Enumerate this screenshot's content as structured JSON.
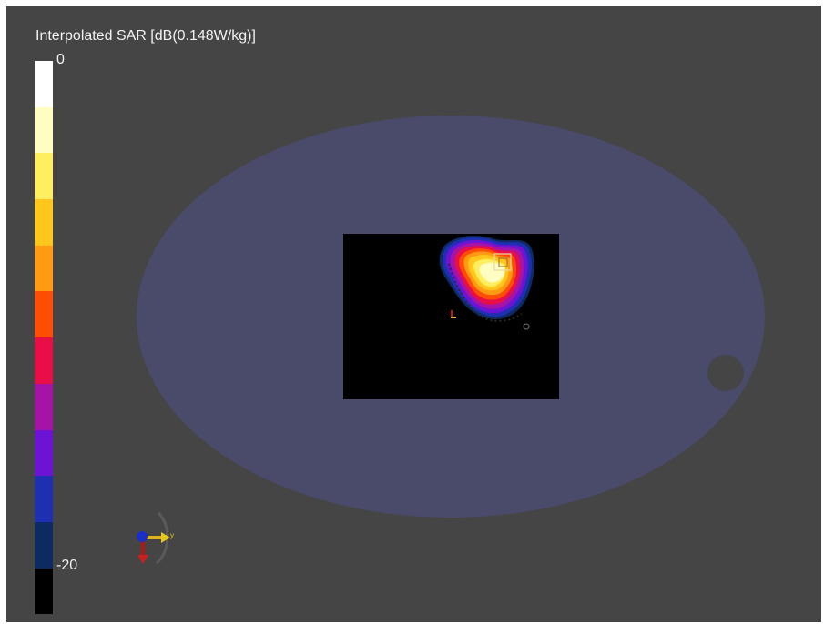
{
  "legend": {
    "title": "Interpolated SAR [dB(0.148W/kg)]",
    "max_label": "0",
    "min_label": "-20",
    "colors": [
      "#ffffff",
      "#fffdc2",
      "#ffee60",
      "#ffc61b",
      "#ff9a12",
      "#ff4d06",
      "#e80f49",
      "#a614a5",
      "#6d13d3",
      "#1f2fb2",
      "#0d2a63",
      "#000000"
    ]
  },
  "axis_triad": {
    "y_label": "y"
  },
  "colors": {
    "background": "#454545",
    "phantom": "#4a4a6b",
    "scan_area": "#000000"
  }
}
